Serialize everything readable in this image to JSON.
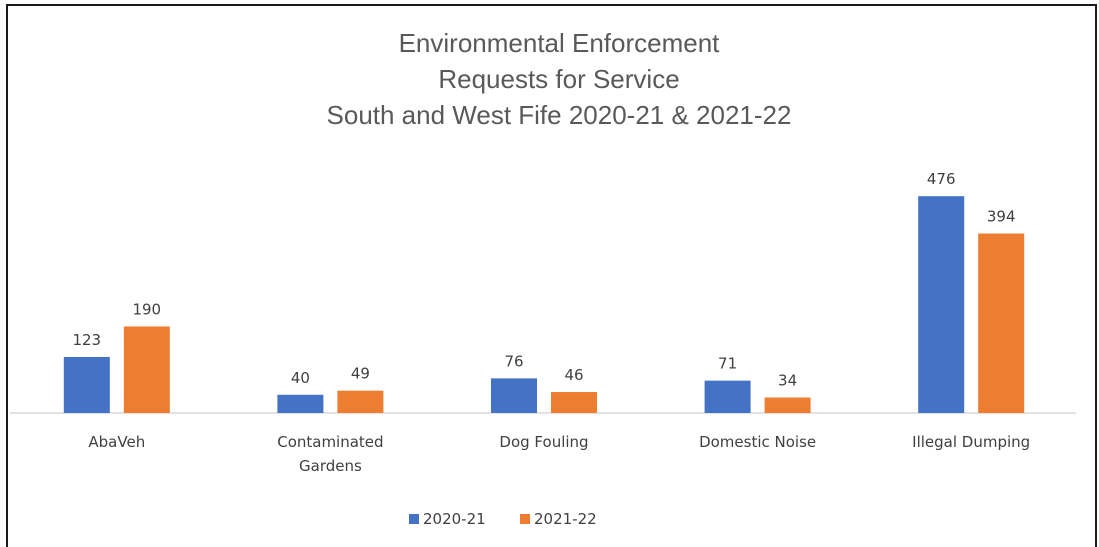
{
  "chart_data": {
    "type": "bar",
    "title": [
      "Environmental Enforcement",
      "Requests for Service",
      "South and West Fife 2020-21 & 2021-22"
    ],
    "categories": [
      [
        "AbaVeh"
      ],
      [
        "Contaminated",
        "Gardens"
      ],
      [
        "Dog Fouling"
      ],
      [
        "Domestic Noise"
      ],
      [
        "Illegal Dumping"
      ]
    ],
    "series": [
      {
        "name": "2020-21",
        "color": "#4472C4",
        "values": [
          123,
          40,
          76,
          71,
          476
        ]
      },
      {
        "name": "2021-22",
        "color": "#ED7D31",
        "values": [
          190,
          49,
          46,
          34,
          394
        ]
      }
    ],
    "ylim": [
      0,
      500
    ],
    "grid": false,
    "data_labels": true,
    "legend_position": "bottom",
    "axis_color": "#D9D9D9"
  }
}
